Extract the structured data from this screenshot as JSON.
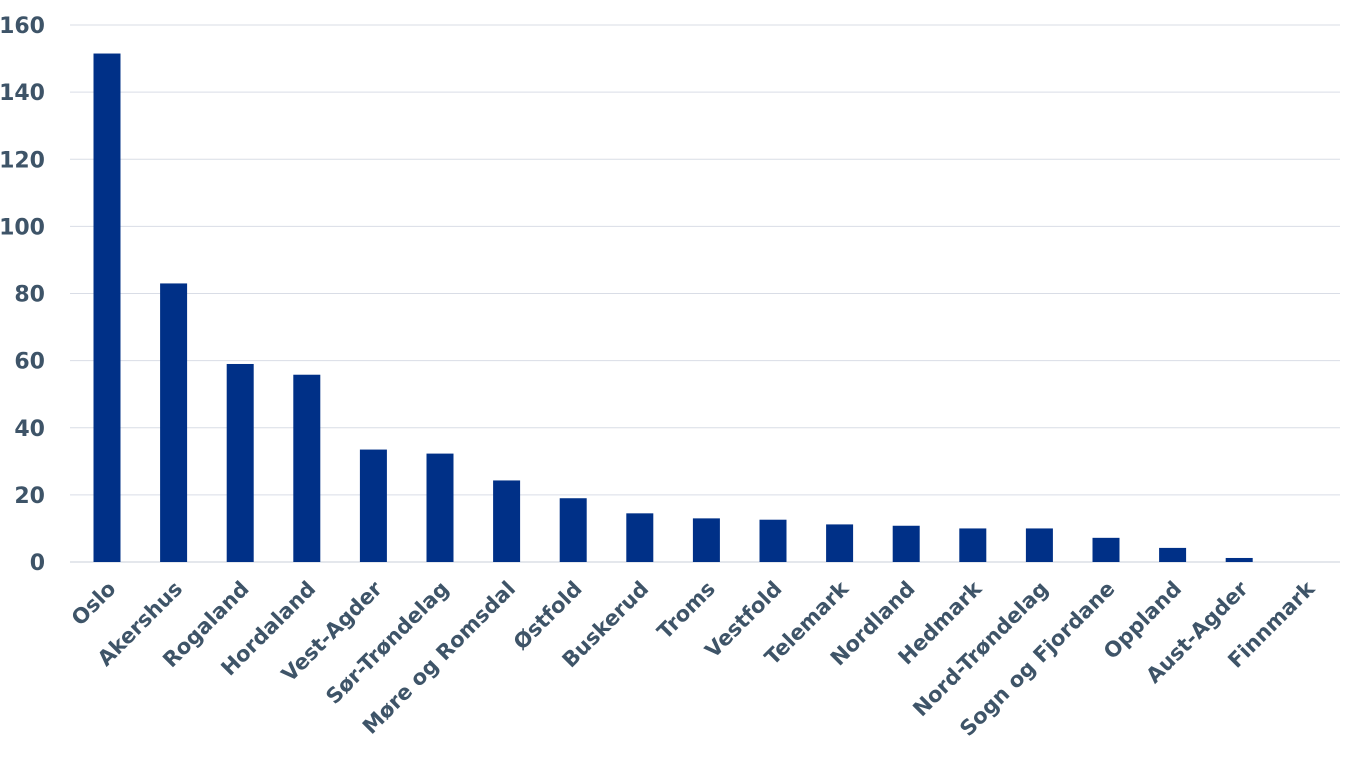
{
  "chart_data": {
    "type": "bar",
    "title": "",
    "xlabel": "",
    "ylabel": "",
    "ylim": [
      0,
      160
    ],
    "yticks": [
      0,
      20,
      40,
      60,
      80,
      100,
      120,
      140,
      160
    ],
    "grid": true,
    "legend": "none",
    "bar_color": "#003087",
    "categories": [
      "Oslo",
      "Akershus",
      "Rogaland",
      "Hordaland",
      "Vest-Agder",
      "Sør-Trøndelag",
      "Møre og Romsdal",
      "Østfold",
      "Buskerud",
      "Troms",
      "Vestfold",
      "Telemark",
      "Nordland",
      "Hedmark",
      "Nord-Trøndelag",
      "Sogn og Fjordane",
      "Oppland",
      "Aust-Agder",
      "Finnmark"
    ],
    "values": [
      151.5,
      83,
      59,
      55.8,
      33.5,
      32.3,
      24.3,
      19,
      14.5,
      13,
      12.6,
      11.2,
      10.8,
      10,
      10,
      7.2,
      4.2,
      1.2,
      0
    ]
  }
}
